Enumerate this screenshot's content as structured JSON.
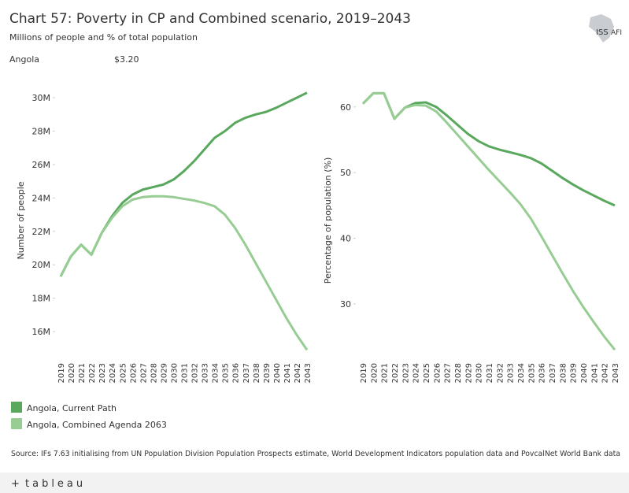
{
  "header": {
    "title": "Chart 57: Poverty in CP and Combined scenario, 2019–2043",
    "subtitle": "Millions of people and % of total population",
    "country": "Angola",
    "poverty_line": "$3.20"
  },
  "chart_data": [
    {
      "type": "line",
      "ylabel": "Number of people",
      "x": [
        2019,
        2020,
        2021,
        2022,
        2023,
        2024,
        2025,
        2026,
        2027,
        2028,
        2029,
        2030,
        2031,
        2032,
        2033,
        2034,
        2035,
        2036,
        2037,
        2038,
        2039,
        2040,
        2041,
        2042,
        2043
      ],
      "xlim": [
        2019,
        2043
      ],
      "ylim": [
        14.4,
        30.9
      ],
      "yticks": [
        {
          "value": 16,
          "label": "16M"
        },
        {
          "value": 18,
          "label": "18M"
        },
        {
          "value": 20,
          "label": "20M"
        },
        {
          "value": 22,
          "label": "22M"
        },
        {
          "value": 24,
          "label": "24M"
        },
        {
          "value": 26,
          "label": "26M"
        },
        {
          "value": 28,
          "label": "28M"
        },
        {
          "value": 30,
          "label": "30M"
        }
      ],
      "grid": false,
      "series": [
        {
          "name": "Angola,  Current Path",
          "color": "#59a85e",
          "values": [
            19.3,
            20.5,
            21.2,
            20.6,
            21.9,
            22.9,
            23.7,
            24.2,
            24.5,
            24.65,
            24.8,
            25.1,
            25.6,
            26.2,
            26.9,
            27.6,
            28.0,
            28.5,
            28.8,
            29.0,
            29.15,
            29.4,
            29.7,
            30.0,
            30.3
          ]
        },
        {
          "name": "Angola,  Combined Agenda 2063",
          "color": "#97cd93",
          "values": [
            19.3,
            20.5,
            21.2,
            20.6,
            21.9,
            22.8,
            23.5,
            23.9,
            24.05,
            24.1,
            24.1,
            24.05,
            23.95,
            23.85,
            23.7,
            23.5,
            23.0,
            22.2,
            21.2,
            20.1,
            19.0,
            17.9,
            16.8,
            15.8,
            14.9
          ]
        }
      ]
    },
    {
      "type": "line",
      "ylabel": "Percentage of population (%)",
      "x": [
        2019,
        2020,
        2021,
        2022,
        2023,
        2024,
        2025,
        2026,
        2027,
        2028,
        2029,
        2030,
        2031,
        2032,
        2033,
        2034,
        2035,
        2036,
        2037,
        2038,
        2039,
        2040,
        2041,
        2042,
        2043
      ],
      "xlim": [
        2019,
        2043
      ],
      "ylim": [
        21.7,
        63.7
      ],
      "yticks": [
        30,
        40,
        50,
        60
      ],
      "grid": false,
      "series": [
        {
          "name": "Angola,  Current Path",
          "color": "#59a85e",
          "values": [
            60.5,
            62.1,
            62.1,
            58.2,
            59.9,
            60.6,
            60.7,
            60.0,
            58.7,
            57.3,
            55.9,
            54.8,
            54.0,
            53.5,
            53.1,
            52.7,
            52.2,
            51.4,
            50.3,
            49.2,
            48.2,
            47.3,
            46.5,
            45.7,
            45.0
          ]
        },
        {
          "name": "Angola,  Combined Agenda 2063",
          "color": "#97cd93",
          "values": [
            60.5,
            62.1,
            62.1,
            58.2,
            59.9,
            60.3,
            60.2,
            59.3,
            57.6,
            55.8,
            54.0,
            52.2,
            50.4,
            48.7,
            47.0,
            45.2,
            43.0,
            40.3,
            37.5,
            34.7,
            32.0,
            29.5,
            27.2,
            25.0,
            23.0
          ]
        }
      ]
    }
  ],
  "source": "Source: IFs 7.63 initialising from UN Population Division Population Prospects estimate, World Development Indicators population data and PovcalNet World Bank data",
  "footer": {
    "brand": "tableau"
  }
}
